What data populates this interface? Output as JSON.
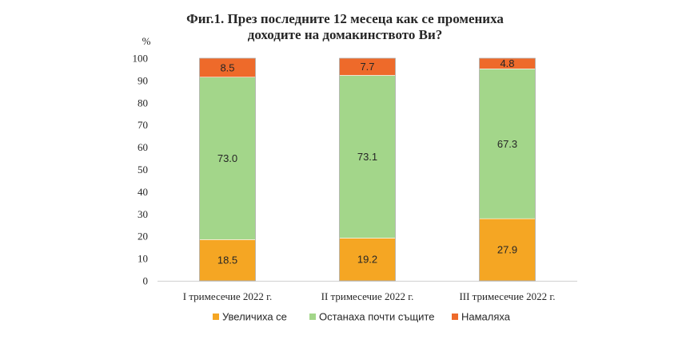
{
  "chart_data": {
    "type": "bar",
    "stacked": true,
    "title": "Фиг.1. През последните 12 месеца как се промениха доходите на домакинството Ви?",
    "title_lines": [
      "Фиг.1. През последните 12 месеца как се промениха",
      "доходите на домакинството Ви?"
    ],
    "ylabel": "%",
    "xlabel": "",
    "ylim": [
      0,
      100
    ],
    "yticks": [
      "0",
      "10",
      "20",
      "30",
      "40",
      "50",
      "60",
      "70",
      "80",
      "90",
      "100"
    ],
    "grid": false,
    "legend_position": "bottom",
    "categories": [
      "I тримесечие 2022  г.",
      "II тримесечие 2022  г.",
      "III тримесечие 2022  г."
    ],
    "series": [
      {
        "name": "Увеличиха  се",
        "values": [
          18.5,
          19.2,
          27.9
        ],
        "labels": [
          "18.5",
          "19.2",
          "27.9"
        ],
        "color": "#F5A623"
      },
      {
        "name": "Останаха  почти същите",
        "values": [
          73.0,
          73.1,
          67.3
        ],
        "labels": [
          "73.0",
          "73.1",
          "67.3"
        ],
        "color": "#A3D68A"
      },
      {
        "name": "Намаляха",
        "values": [
          8.5,
          7.7,
          4.8
        ],
        "labels": [
          "8.5",
          "7.7",
          "4.8"
        ],
        "color": "#EE6A2A"
      }
    ]
  }
}
